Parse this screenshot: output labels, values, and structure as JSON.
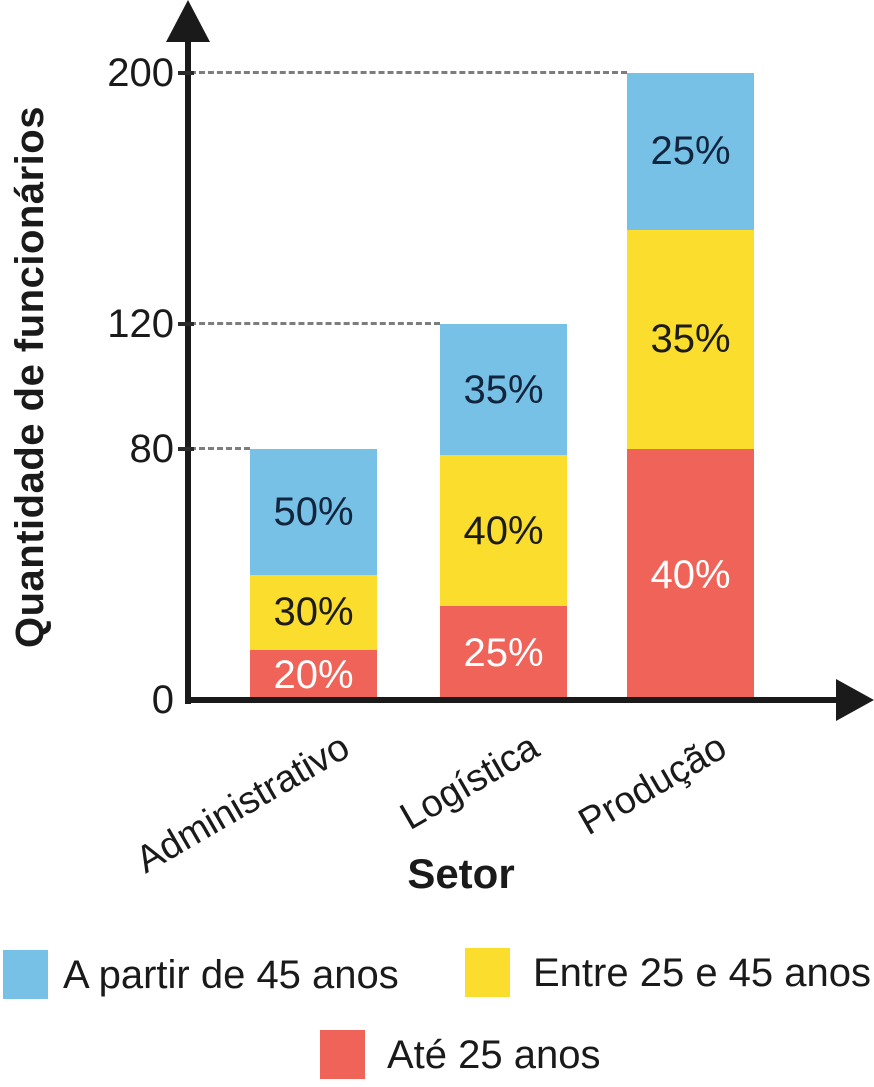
{
  "chart_data": {
    "type": "bar",
    "stacked": true,
    "title": "",
    "xlabel": "Setor",
    "ylabel": "Quantidade de funcionários",
    "categories": [
      "Administrativo",
      "Logística",
      "Produção"
    ],
    "totals": [
      80,
      120,
      200
    ],
    "series": [
      {
        "name": "Até 25 anos",
        "color": "#EF6358",
        "label_color": "#ffffff",
        "percentages": [
          20,
          25,
          40
        ]
      },
      {
        "name": "Entre 25 e 45 anos",
        "color": "#FBDD2D",
        "label_color": "#1c1c1c",
        "percentages": [
          30,
          40,
          35
        ]
      },
      {
        "name": "A partir de 45 anos",
        "color": "#77C0E6",
        "label_color": "#13253c",
        "percentages": [
          50,
          35,
          25
        ]
      }
    ],
    "stack_order": "bottom-to-top",
    "segment_label_format": "percent",
    "y_ticks": [
      0,
      80,
      120,
      200
    ],
    "ylim": [
      0,
      200
    ],
    "grid": "dashed-guide-to-each-bar-top",
    "legend_position": "bottom",
    "legend_rows": [
      [
        "A partir de 45 anos",
        "Entre 25 e 45 anos"
      ],
      [
        "Até 25 anos"
      ]
    ],
    "colors": {
      "axis": "#1a1a1a",
      "dash": "#7d7d7d",
      "text": "#1a1a1a"
    }
  }
}
